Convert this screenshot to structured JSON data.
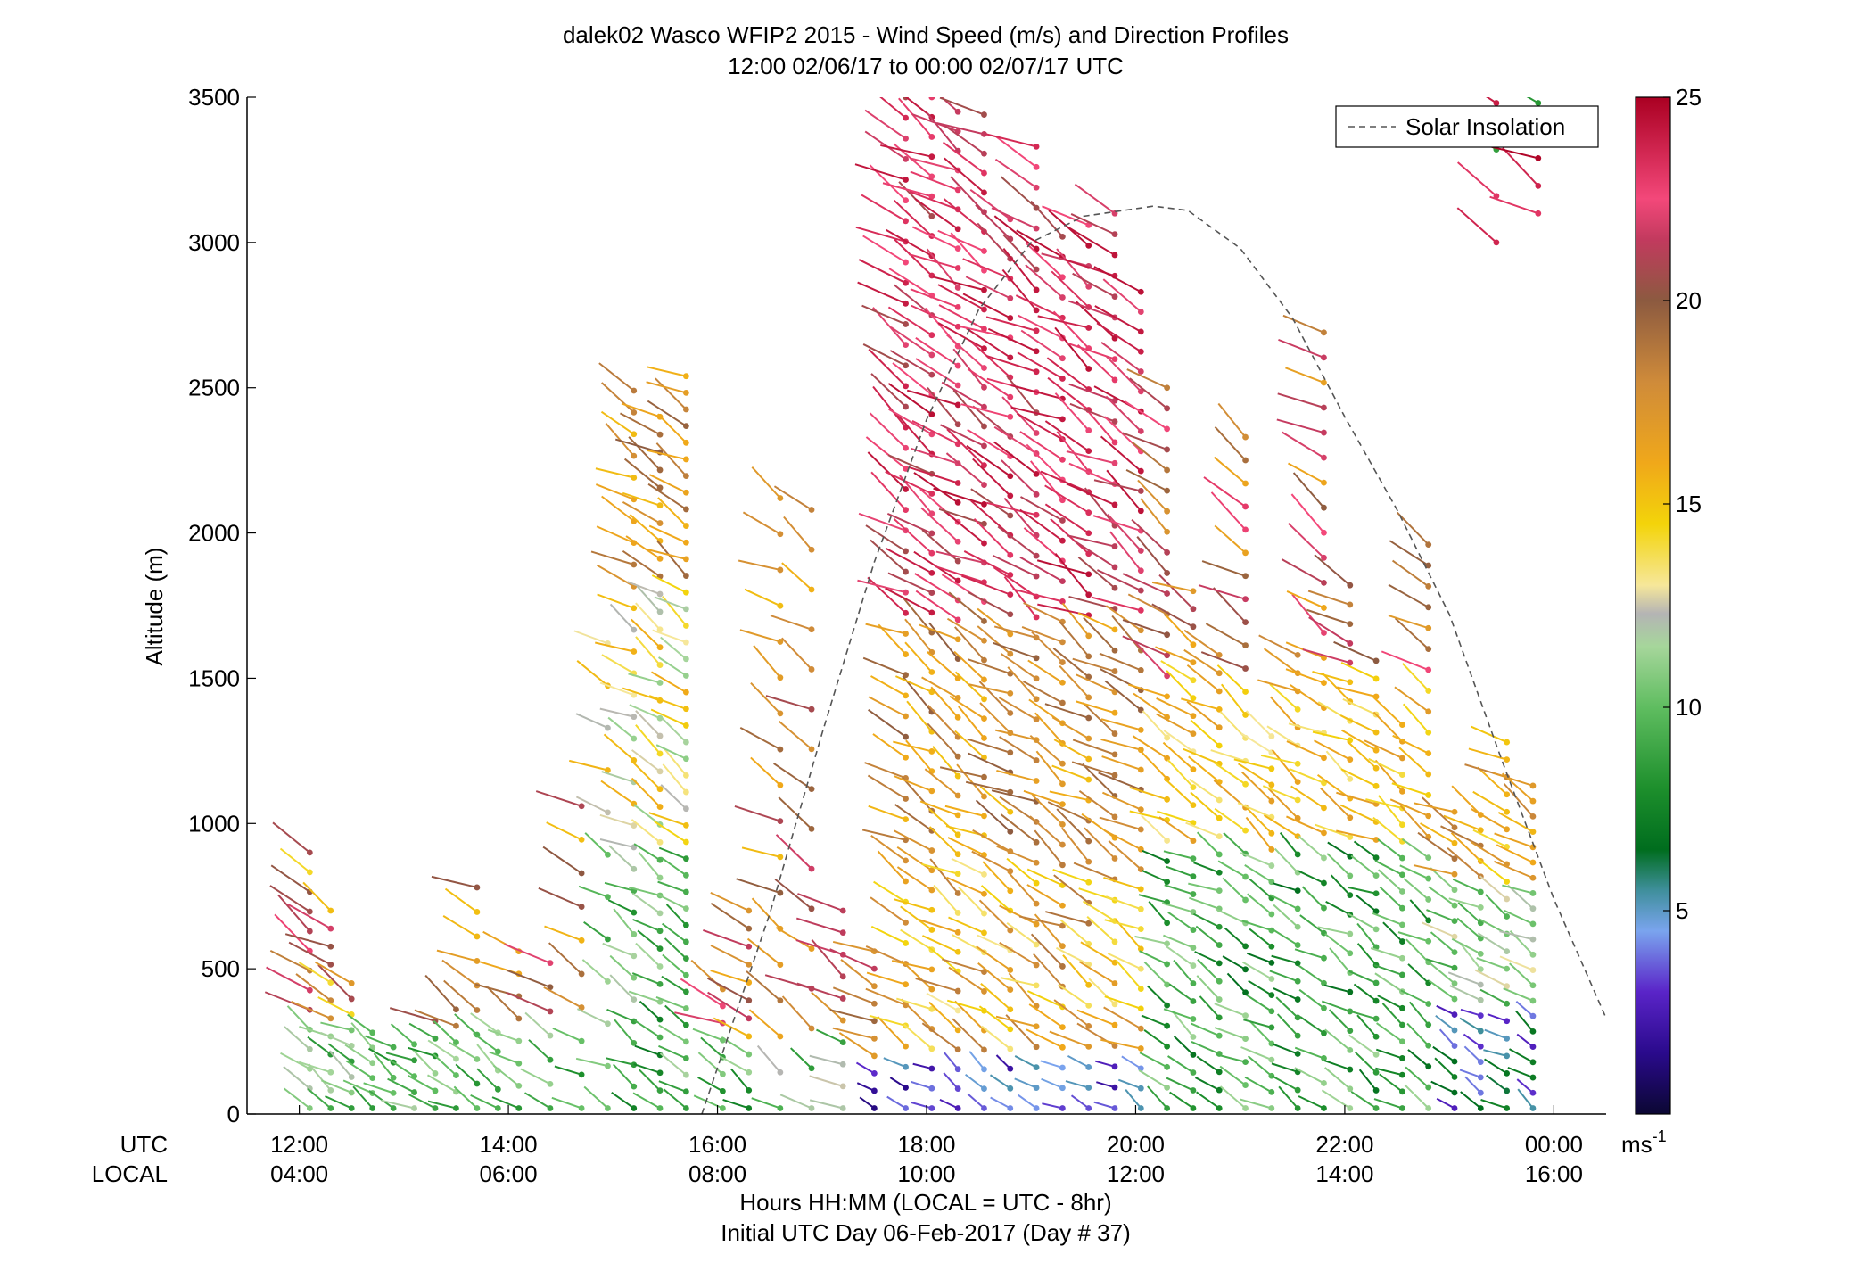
{
  "chart_data": {
    "type": "scatter",
    "subtype": "wind-barb-profile",
    "title": "dalek02 Wasco WFIP2 2015 - Wind Speed (m/s) and Direction Profiles",
    "subtitle": "12:00 02/06/17 to 00:00 02/07/17  UTC",
    "xlabel": "Hours HH:MM  (LOCAL = UTC - 8hr)",
    "xlabel2": "Initial UTC Day 06-Feb-2017 (Day # 37)",
    "ylabel": "Altitude (m)",
    "xrange_utc_hours": [
      11.5,
      24.5
    ],
    "ylim": [
      0,
      3500
    ],
    "yticks": [
      0,
      500,
      1000,
      1500,
      2000,
      2500,
      3000,
      3500
    ],
    "xticks_hours": [
      12,
      14,
      16,
      18,
      20,
      22,
      24
    ],
    "xtick_row_labels": [
      "UTC",
      "LOCAL"
    ],
    "xtick_utc_labels": [
      "12:00",
      "14:00",
      "16:00",
      "18:00",
      "20:00",
      "22:00",
      "00:00"
    ],
    "xtick_local_labels": [
      "04:00",
      "06:00",
      "08:00",
      "10:00",
      "12:00",
      "14:00",
      "16:00"
    ],
    "legend": {
      "entries": [
        "Solar Insolation"
      ],
      "placement": "top-right"
    },
    "colorbar": {
      "label": "ms",
      "label_superscript": "-1",
      "range": [
        0,
        25
      ],
      "ticks": [
        5,
        10,
        15,
        20,
        25
      ],
      "colors": [
        [
          0,
          "#0b0733"
        ],
        [
          1.5,
          "#2a0a8c"
        ],
        [
          3,
          "#5a24c8"
        ],
        [
          4.5,
          "#7aa4ee"
        ],
        [
          5.5,
          "#3f8f9c"
        ],
        [
          6.5,
          "#006d1e"
        ],
        [
          8,
          "#1d8f2c"
        ],
        [
          10,
          "#5fbd60"
        ],
        [
          11.5,
          "#a6d69b"
        ],
        [
          12.3,
          "#b4b4b4"
        ],
        [
          13,
          "#f6e79a"
        ],
        [
          14.5,
          "#f3d40a"
        ],
        [
          16,
          "#f0a81a"
        ],
        [
          18,
          "#cf8b3a"
        ],
        [
          20,
          "#8c5a40"
        ],
        [
          21.5,
          "#c23a5e"
        ],
        [
          22.5,
          "#f3487a"
        ],
        [
          25,
          "#aa0022"
        ]
      ]
    },
    "solar_insolation": {
      "style": "dashed",
      "color": "#555555",
      "peak_hour_utc": 20.17,
      "peak_altitude": 3125,
      "points": [
        [
          15.85,
          0
        ],
        [
          16.5,
          690
        ],
        [
          17.0,
          1310
        ],
        [
          17.5,
          1900
        ],
        [
          18.0,
          2390
        ],
        [
          18.5,
          2770
        ],
        [
          19.0,
          3000
        ],
        [
          19.5,
          3090
        ],
        [
          20.17,
          3125
        ],
        [
          20.5,
          3110
        ],
        [
          21.0,
          2980
        ],
        [
          21.5,
          2740
        ],
        [
          22.0,
          2400
        ],
        [
          22.5,
          2080
        ],
        [
          23.0,
          1720
        ],
        [
          23.5,
          1220
        ],
        [
          24.0,
          740
        ],
        [
          24.5,
          330
        ]
      ]
    },
    "profiles": [
      {
        "t": 12.1,
        "h": [
          20,
          900
        ],
        "n": 14,
        "regime": "low"
      },
      {
        "t": 12.3,
        "h": [
          20,
          700
        ],
        "n": 12,
        "regime": "low"
      },
      {
        "t": 12.5,
        "h": [
          20,
          450
        ],
        "n": 9,
        "regime": "low"
      },
      {
        "t": 12.7,
        "h": [
          20,
          280
        ],
        "n": 6,
        "regime": "low"
      },
      {
        "t": 12.9,
        "h": [
          20,
          230
        ],
        "n": 5,
        "regime": "low"
      },
      {
        "t": 13.1,
        "h": [
          20,
          240
        ],
        "n": 5,
        "regime": "low"
      },
      {
        "t": 13.3,
        "h": [
          20,
          320
        ],
        "n": 6,
        "regime": "low"
      },
      {
        "t": 13.5,
        "h": [
          20,
          360
        ],
        "n": 7,
        "regime": "low"
      },
      {
        "t": 13.7,
        "h": [
          20,
          780
        ],
        "n": 10,
        "regime": "low"
      },
      {
        "t": 13.9,
        "h": [
          20,
          280
        ],
        "n": 5,
        "regime": "low"
      },
      {
        "t": 14.1,
        "h": [
          20,
          560
        ],
        "n": 8,
        "regime": "low"
      },
      {
        "t": 14.4,
        "h": [
          20,
          520
        ],
        "n": 7,
        "regime": "low"
      },
      {
        "t": 14.7,
        "h": [
          20,
          1060
        ],
        "n": 10,
        "regime": "low"
      },
      {
        "t": 14.95,
        "h": [
          20,
          1620
        ],
        "n": 12,
        "regime": "mixed"
      },
      {
        "t": 15.2,
        "h": [
          20,
          2490
        ],
        "n": 34,
        "regime": "mixed"
      },
      {
        "t": 15.45,
        "h": [
          20,
          2400
        ],
        "n": 40,
        "regime": "mixed"
      },
      {
        "t": 15.7,
        "h": [
          20,
          2540
        ],
        "n": 45,
        "regime": "mixed"
      },
      {
        "t": 16.05,
        "h": [
          20,
          430
        ],
        "n": 8,
        "regime": "low"
      },
      {
        "t": 16.3,
        "h": [
          20,
          700
        ],
        "n": 12,
        "regime": "warm"
      },
      {
        "t": 16.6,
        "h": [
          20,
          2120
        ],
        "n": 18,
        "regime": "warm"
      },
      {
        "t": 16.9,
        "h": [
          20,
          2080
        ],
        "n": 16,
        "regime": "warm"
      },
      {
        "t": 17.2,
        "h": [
          20,
          700
        ],
        "n": 10,
        "regime": "warm"
      },
      {
        "t": 17.5,
        "h": [
          20,
          560
        ],
        "n": 10,
        "regime": "calm"
      },
      {
        "t": 17.8,
        "h": [
          20,
          3500
        ],
        "n": 50,
        "regime": "upper"
      },
      {
        "t": 18.05,
        "h": [
          20,
          3500
        ],
        "n": 52,
        "regime": "upper"
      },
      {
        "t": 18.3,
        "h": [
          20,
          3450
        ],
        "n": 52,
        "regime": "upper"
      },
      {
        "t": 18.55,
        "h": [
          20,
          3440
        ],
        "n": 52,
        "regime": "upper"
      },
      {
        "t": 18.8,
        "h": [
          20,
          3080
        ],
        "n": 46,
        "regime": "upper"
      },
      {
        "t": 19.05,
        "h": [
          20,
          3330
        ],
        "n": 48,
        "regime": "upper"
      },
      {
        "t": 19.3,
        "h": [
          20,
          3020
        ],
        "n": 44,
        "regime": "upper"
      },
      {
        "t": 19.55,
        "h": [
          20,
          3060
        ],
        "n": 44,
        "regime": "upper"
      },
      {
        "t": 19.8,
        "h": [
          20,
          3100
        ],
        "n": 44,
        "regime": "upper"
      },
      {
        "t": 20.05,
        "h": [
          20,
          2830
        ],
        "n": 42,
        "regime": "upper"
      },
      {
        "t": 20.3,
        "h": [
          20,
          2500
        ],
        "n": 36,
        "regime": "mid"
      },
      {
        "t": 20.55,
        "h": [
          20,
          1800
        ],
        "n": 30,
        "regime": "mid"
      },
      {
        "t": 20.8,
        "h": [
          20,
          1580
        ],
        "n": 26,
        "regime": "mid"
      },
      {
        "t": 21.05,
        "h": [
          20,
          2330
        ],
        "n": 30,
        "regime": "mid"
      },
      {
        "t": 21.3,
        "h": [
          20,
          1300
        ],
        "n": 24,
        "regime": "mid"
      },
      {
        "t": 21.55,
        "h": [
          20,
          1580
        ],
        "n": 26,
        "regime": "mid"
      },
      {
        "t": 21.8,
        "h": [
          20,
          2690
        ],
        "n": 32,
        "regime": "mid"
      },
      {
        "t": 22.05,
        "h": [
          20,
          1820
        ],
        "n": 28,
        "regime": "mid"
      },
      {
        "t": 22.3,
        "h": [
          20,
          1560
        ],
        "n": 26,
        "regime": "mid"
      },
      {
        "t": 22.55,
        "h": [
          20,
          1340
        ],
        "n": 24,
        "regime": "mid"
      },
      {
        "t": 22.8,
        "h": [
          20,
          1960
        ],
        "n": 28,
        "regime": "mid"
      },
      {
        "t": 23.05,
        "h": [
          20,
          1040
        ],
        "n": 20,
        "regime": "late"
      },
      {
        "t": 23.3,
        "h": [
          20,
          1030
        ],
        "n": 20,
        "regime": "late"
      },
      {
        "t": 23.55,
        "h": [
          20,
          1280
        ],
        "n": 22,
        "regime": "late"
      },
      {
        "t": 23.8,
        "h": [
          20,
          1130
        ],
        "n": 22,
        "regime": "late"
      },
      {
        "t": 23.45,
        "h": [
          3000,
          3480
        ],
        "n": 4,
        "regime": "top"
      },
      {
        "t": 23.85,
        "h": [
          3100,
          3480
        ],
        "n": 5,
        "regime": "top"
      }
    ]
  }
}
